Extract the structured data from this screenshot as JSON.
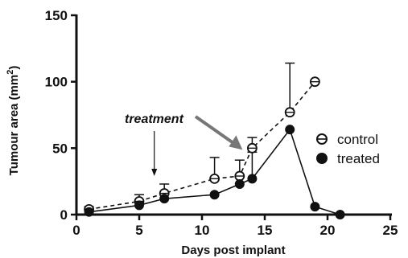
{
  "chart_data": {
    "type": "line",
    "xlabel": "Days post implant",
    "ylabel": "Tumour area (mm",
    "ylabel_superscript": "2",
    "ylabel_suffix": ")",
    "xlim": [
      0,
      25
    ],
    "ylim": [
      0,
      150
    ],
    "xticks": [
      0,
      5,
      10,
      15,
      20,
      25
    ],
    "yticks": [
      0,
      50,
      100,
      150
    ],
    "grid": false,
    "legend_position": "right",
    "series": [
      {
        "name": "control",
        "marker": "open-circle",
        "line_style": "dashed",
        "color": "#111111",
        "x": [
          1,
          5,
          7,
          11,
          13,
          14,
          17,
          19
        ],
        "y": [
          4,
          10,
          16,
          27,
          29,
          50,
          77,
          100
        ],
        "error_upper": [
          2,
          5,
          7,
          16,
          12,
          8,
          37,
          0
        ]
      },
      {
        "name": "treated",
        "marker": "filled-circle",
        "line_style": "solid",
        "color": "#111111",
        "x": [
          1,
          5,
          7,
          11,
          13,
          14,
          17,
          19,
          21
        ],
        "y": [
          2,
          7,
          12,
          15,
          23,
          27,
          64,
          6,
          0
        ],
        "error_upper": [
          0,
          0,
          0,
          0,
          0,
          20,
          0,
          0,
          0
        ]
      }
    ],
    "annotations": [
      {
        "text": "treatment",
        "style": "bold-italic",
        "arrow_x": 6.2
      }
    ],
    "highlight_arrow_color": "#777777"
  }
}
